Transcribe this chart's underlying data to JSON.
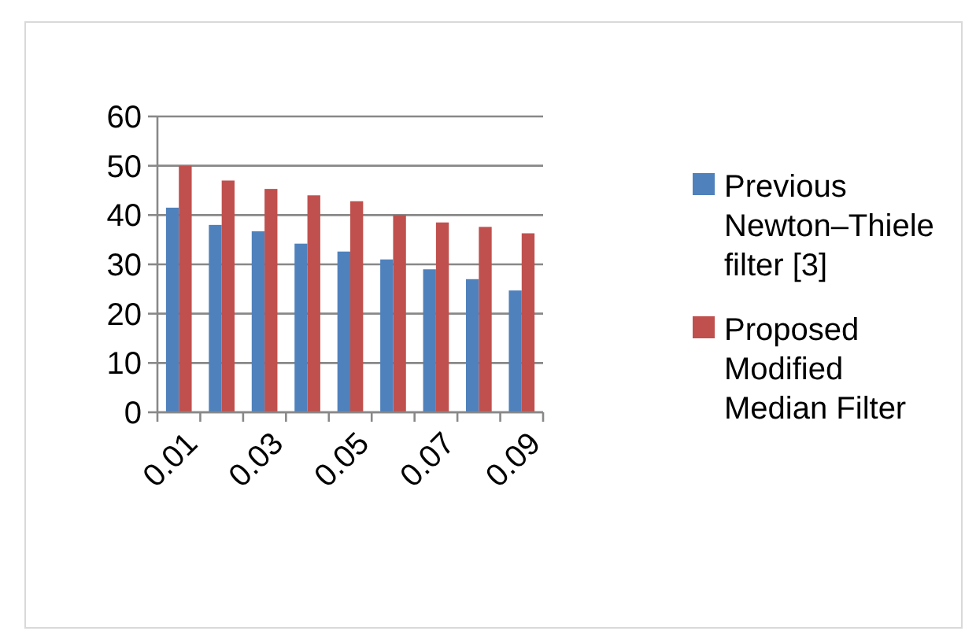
{
  "chart_data": {
    "type": "bar",
    "categories": [
      "0.01",
      null,
      "0.03",
      null,
      "0.05",
      null,
      "0.07",
      null,
      "0.09"
    ],
    "series": [
      {
        "name": "Previous Newton–Thiele filter [3]",
        "color": "#4f81bd",
        "values": [
          41.5,
          38,
          36.7,
          34.2,
          32.6,
          31,
          29,
          27,
          24.7
        ]
      },
      {
        "name": "Proposed Modified Median Filter",
        "color": "#c0504d",
        "values": [
          50,
          47,
          45.3,
          44,
          42.8,
          40,
          38.5,
          37.6,
          36.3
        ]
      }
    ],
    "ylim": [
      0,
      60
    ],
    "yticks": [
      0,
      10,
      20,
      30,
      40,
      50,
      60
    ],
    "grid": "y",
    "legend": "right"
  }
}
